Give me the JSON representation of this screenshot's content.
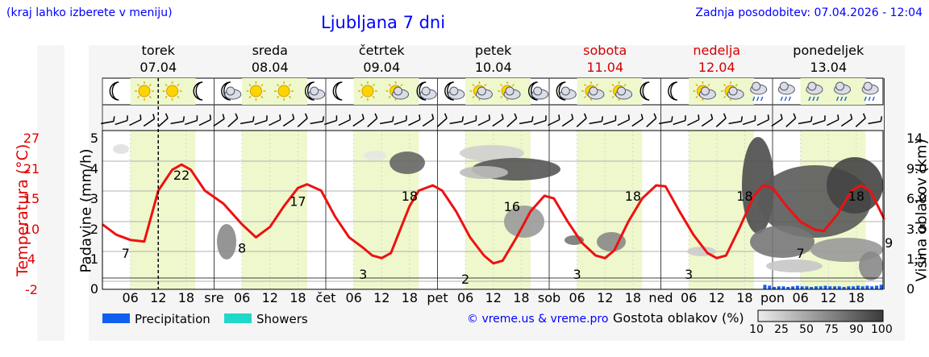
{
  "header": {
    "left_note": "(kraj lahko izberete v meniju)",
    "title": "Ljubljana 7 dni",
    "updated": "Zadnja posodobitev: 07.04.2026 - 12:04"
  },
  "days": [
    {
      "name": "torek",
      "date": "07.04",
      "weekend": false
    },
    {
      "name": "sreda",
      "date": "08.04",
      "weekend": false
    },
    {
      "name": "četrtek",
      "date": "09.04",
      "weekend": false
    },
    {
      "name": "petek",
      "date": "10.04",
      "weekend": false
    },
    {
      "name": "sobota",
      "date": "11.04",
      "weekend": true
    },
    {
      "name": "nedelja",
      "date": "12.04",
      "weekend": true
    },
    {
      "name": "ponedeljek",
      "date": "13.04",
      "weekend": false
    }
  ],
  "weather_icons": [
    [
      "moon-icon",
      "sun-icon",
      "sun-icon",
      "moon-icon"
    ],
    [
      "moon-cloud-icon",
      "sun-icon",
      "sun-icon",
      "moon-cloud-icon"
    ],
    [
      "moon-icon",
      "sun-icon",
      "sun-cloud-icon",
      "moon-cloud-icon"
    ],
    [
      "moon-cloud-icon",
      "sun-cloud-icon",
      "sun-cloud-icon",
      "moon-cloud-icon"
    ],
    [
      "moon-cloud-icon",
      "sun-cloud-icon",
      "sun-cloud-icon",
      "moon-icon"
    ],
    [
      "moon-icon",
      "sun-cloud-icon",
      "sun-cloud-icon",
      "rain-cloud-icon"
    ],
    [
      "rain-cloud-icon",
      "rain-cloud-icon",
      "rain-cloud-icon",
      "rain-cloud-icon"
    ]
  ],
  "axes": {
    "temp_label": "Temperatura (°C)",
    "temp_ticks": [
      "27",
      "21",
      "15",
      "10",
      "4",
      "-2"
    ],
    "precip_label": "Padavine (mm/h)",
    "precip_ticks": [
      "5",
      "4",
      "3",
      "2",
      "1",
      "0"
    ],
    "cloud_label": "Višina oblakov (km)",
    "cloud_ticks": [
      "14",
      "9.0",
      "6.0",
      "3.5",
      "1.5",
      "0"
    ],
    "x_day_abbr": [
      "sre",
      "čet",
      "pet",
      "sob",
      "ned",
      "pon"
    ],
    "x_hours": [
      "06",
      "12",
      "18"
    ]
  },
  "legend": {
    "precip_label": "Precipitation",
    "showers_label": "Showers",
    "credit": "© vreme.us & vreme.pro",
    "cloud_density_label": "Gostota oblakov (%)",
    "cloud_scale": [
      "10",
      "25",
      "50",
      "75",
      "90",
      "100"
    ]
  },
  "colors": {
    "temperature": "#ee1111",
    "precipitation": "#1060f0",
    "showers": "#20d8c8",
    "daylight": "#eef8cc",
    "title": "#0000ff",
    "weekend": "#d40000"
  },
  "chart_data": {
    "type": "line",
    "x_unit": "hours from 07.04 00:00",
    "x_range": [
      0,
      168
    ],
    "temp_range_c": [
      -2,
      27
    ],
    "precip_range_mmh": [
      0,
      5
    ],
    "cloud_height_range_km": [
      0,
      14
    ],
    "temperature": [
      {
        "h": 0,
        "t": 10.5
      },
      {
        "h": 3,
        "t": 8.5
      },
      {
        "h": 6,
        "t": 7.5
      },
      {
        "h": 9,
        "t": 7.2
      },
      {
        "h": 12,
        "t": 17
      },
      {
        "h": 15,
        "t": 21
      },
      {
        "h": 17,
        "t": 22
      },
      {
        "h": 19,
        "t": 21
      },
      {
        "h": 22,
        "t": 17
      },
      {
        "h": 26,
        "t": 14.5
      },
      {
        "h": 30,
        "t": 10.5
      },
      {
        "h": 33,
        "t": 8
      },
      {
        "h": 36,
        "t": 10
      },
      {
        "h": 39,
        "t": 14
      },
      {
        "h": 42,
        "t": 17.5
      },
      {
        "h": 44,
        "t": 18.2
      },
      {
        "h": 47,
        "t": 17
      },
      {
        "h": 50,
        "t": 12
      },
      {
        "h": 53,
        "t": 8
      },
      {
        "h": 56,
        "t": 6
      },
      {
        "h": 58,
        "t": 4.5
      },
      {
        "h": 60,
        "t": 4
      },
      {
        "h": 62,
        "t": 5
      },
      {
        "h": 64,
        "t": 9.5
      },
      {
        "h": 66,
        "t": 14
      },
      {
        "h": 68,
        "t": 17
      },
      {
        "h": 71,
        "t": 18
      },
      {
        "h": 73,
        "t": 17
      },
      {
        "h": 76,
        "t": 13
      },
      {
        "h": 79,
        "t": 8
      },
      {
        "h": 82,
        "t": 4.5
      },
      {
        "h": 84,
        "t": 3
      },
      {
        "h": 86,
        "t": 3.5
      },
      {
        "h": 89,
        "t": 8
      },
      {
        "h": 92,
        "t": 13
      },
      {
        "h": 95,
        "t": 16
      },
      {
        "h": 97,
        "t": 15.5
      },
      {
        "h": 100,
        "t": 11
      },
      {
        "h": 103,
        "t": 7
      },
      {
        "h": 106,
        "t": 4.5
      },
      {
        "h": 108,
        "t": 4
      },
      {
        "h": 110,
        "t": 5.5
      },
      {
        "h": 113,
        "t": 11
      },
      {
        "h": 116,
        "t": 15.5
      },
      {
        "h": 119,
        "t": 18
      },
      {
        "h": 121,
        "t": 17.8
      },
      {
        "h": 124,
        "t": 13
      },
      {
        "h": 127,
        "t": 8.5
      },
      {
        "h": 130,
        "t": 5
      },
      {
        "h": 132,
        "t": 4
      },
      {
        "h": 134,
        "t": 4.5
      },
      {
        "h": 137,
        "t": 10
      },
      {
        "h": 140,
        "t": 16
      },
      {
        "h": 142,
        "t": 18
      },
      {
        "h": 144,
        "t": 17.5
      },
      {
        "h": 147,
        "t": 14
      },
      {
        "h": 150,
        "t": 11
      },
      {
        "h": 153,
        "t": 9.5
      },
      {
        "h": 155,
        "t": 9.2
      },
      {
        "h": 158,
        "t": 12.5
      },
      {
        "h": 161,
        "t": 17
      },
      {
        "h": 163,
        "t": 18
      },
      {
        "h": 165,
        "t": 17
      },
      {
        "h": 168,
        "t": 11.5
      }
    ],
    "temp_labels": [
      {
        "h": 5,
        "t": "7"
      },
      {
        "h": 17,
        "t": "22"
      },
      {
        "h": 30,
        "t": "8"
      },
      {
        "h": 42,
        "t": "17"
      },
      {
        "h": 56,
        "t": "3"
      },
      {
        "h": 66,
        "t": "18"
      },
      {
        "h": 78,
        "t": "2"
      },
      {
        "h": 88,
        "t": "16"
      },
      {
        "h": 102,
        "t": "3"
      },
      {
        "h": 114,
        "t": "18"
      },
      {
        "h": 126,
        "t": "3"
      },
      {
        "h": 138,
        "t": "18"
      },
      {
        "h": 150,
        "t": "7"
      },
      {
        "h": 162,
        "t": "18"
      },
      {
        "h": 169,
        "t": "9"
      }
    ],
    "precipitation": [
      {
        "h": 142,
        "v": 0.15
      },
      {
        "h": 143,
        "v": 0.12
      },
      {
        "h": 144,
        "v": 0.08
      },
      {
        "h": 145,
        "v": 0.1
      },
      {
        "h": 146,
        "v": 0.1
      },
      {
        "h": 147,
        "v": 0.08
      },
      {
        "h": 148,
        "v": 0.1
      },
      {
        "h": 149,
        "v": 0.12
      },
      {
        "h": 150,
        "v": 0.1
      },
      {
        "h": 151,
        "v": 0.1
      },
      {
        "h": 152,
        "v": 0.08
      },
      {
        "h": 153,
        "v": 0.1
      },
      {
        "h": 154,
        "v": 0.1
      },
      {
        "h": 155,
        "v": 0.12
      },
      {
        "h": 156,
        "v": 0.1
      },
      {
        "h": 157,
        "v": 0.1
      },
      {
        "h": 158,
        "v": 0.1
      },
      {
        "h": 159,
        "v": 0.08
      },
      {
        "h": 160,
        "v": 0.1
      },
      {
        "h": 161,
        "v": 0.1
      },
      {
        "h": 162,
        "v": 0.12
      },
      {
        "h": 163,
        "v": 0.1
      },
      {
        "h": 164,
        "v": 0.12
      },
      {
        "h": 165,
        "v": 0.1
      },
      {
        "h": 166,
        "v": 0.12
      },
      {
        "h": 167,
        "v": 0.15
      }
    ],
    "current_time_h": 12
  }
}
